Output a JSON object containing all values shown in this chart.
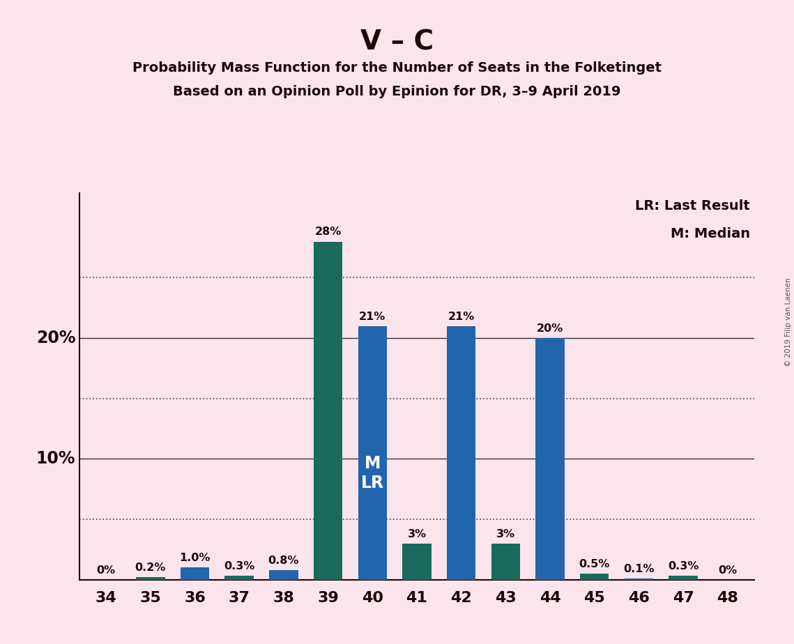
{
  "title1": "V – C",
  "title2": "Probability Mass Function for the Number of Seats in the Folketinget",
  "title3": "Based on an Opinion Poll by Epinion for DR, 3–9 April 2019",
  "background_color": "#fce4ec",
  "seats": [
    34,
    35,
    36,
    37,
    38,
    39,
    40,
    41,
    42,
    43,
    44,
    45,
    46,
    47,
    48
  ],
  "values": [
    0.0,
    0.2,
    1.0,
    0.3,
    0.8,
    28.0,
    21.0,
    3.0,
    21.0,
    3.0,
    20.0,
    0.5,
    0.1,
    0.3,
    0.0
  ],
  "colors": [
    "#1a6b5c",
    "#1a6b5c",
    "#2166ac",
    "#1a6b5c",
    "#2166ac",
    "#1a6b5c",
    "#2166ac",
    "#1a6b5c",
    "#2166ac",
    "#1a6b5c",
    "#2166ac",
    "#1a6b5c",
    "#2166ac",
    "#1a6b5c",
    "#1a6b5c"
  ],
  "labels": [
    "0%",
    "0.2%",
    "1.0%",
    "0.3%",
    "0.8%",
    "28%",
    "21%",
    "3%",
    "21%",
    "3%",
    "20%",
    "0.5%",
    "0.1%",
    "0.3%",
    "0%"
  ],
  "median_seat": 40,
  "lr_seat": 40,
  "legend_text1": "LR: Last Result",
  "legend_text2": "M: Median",
  "dotted_lines": [
    5.0,
    15.0,
    25.0
  ],
  "solid_lines": [
    10.0,
    20.0
  ],
  "copyright": "© 2019 Filip van Laenen",
  "bar_width": 0.65,
  "ylim_max": 32,
  "xlim_min": 33.4,
  "xlim_max": 48.6
}
